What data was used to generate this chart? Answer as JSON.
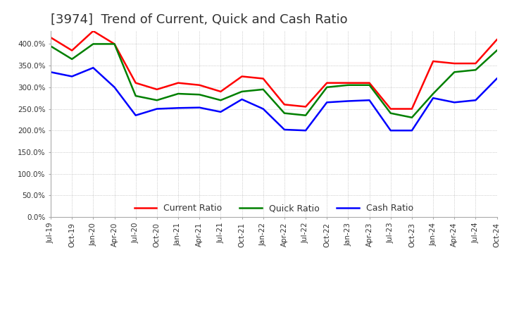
{
  "title": "[3974]  Trend of Current, Quick and Cash Ratio",
  "title_fontsize": 13,
  "title_color": "#333333",
  "background_color": "#ffffff",
  "plot_bg_color": "#ffffff",
  "ylim": [
    0,
    430
  ],
  "yticks": [
    0,
    50,
    100,
    150,
    200,
    250,
    300,
    350,
    400
  ],
  "x_labels": [
    "Jul-19",
    "Oct-19",
    "Jan-20",
    "Apr-20",
    "Jul-20",
    "Oct-20",
    "Jan-21",
    "Apr-21",
    "Jul-21",
    "Oct-21",
    "Jan-22",
    "Apr-22",
    "Jul-22",
    "Oct-22",
    "Jan-23",
    "Apr-23",
    "Jul-23",
    "Oct-23",
    "Jan-24",
    "Apr-24",
    "Jul-24",
    "Oct-24"
  ],
  "current_ratio": [
    415,
    385,
    430,
    400,
    310,
    295,
    310,
    305,
    290,
    325,
    320,
    260,
    255,
    310,
    310,
    310,
    250,
    250,
    360,
    355,
    355,
    410
  ],
  "quick_ratio": [
    395,
    365,
    400,
    400,
    280,
    270,
    285,
    283,
    270,
    290,
    295,
    240,
    235,
    300,
    305,
    305,
    240,
    230,
    285,
    335,
    340,
    385
  ],
  "cash_ratio": [
    335,
    325,
    345,
    300,
    235,
    250,
    252,
    253,
    243,
    272,
    250,
    202,
    200,
    265,
    268,
    270,
    200,
    200,
    275,
    265,
    270,
    320
  ],
  "current_color": "#ff0000",
  "quick_color": "#008000",
  "cash_color": "#0000ff",
  "line_width": 1.8,
  "legend_labels": [
    "Current Ratio",
    "Quick Ratio",
    "Cash Ratio"
  ]
}
